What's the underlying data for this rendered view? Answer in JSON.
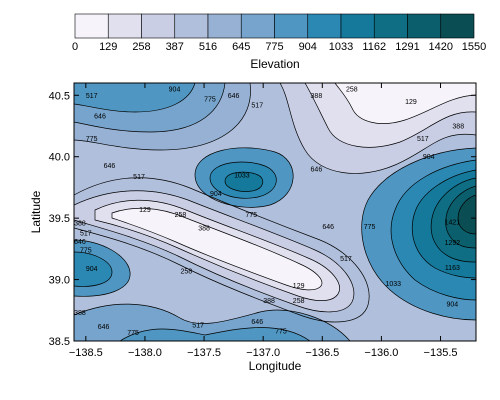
{
  "chart_data": {
    "type": "contour-filled",
    "xlabel": "Longitude",
    "ylabel": "Latitude",
    "xlim": [
      -138.6,
      -135.2
    ],
    "ylim": [
      38.5,
      40.6
    ],
    "x_ticks": [
      -138.5,
      -138.0,
      -137.5,
      -137.0,
      -136.5,
      -136.0,
      -135.5
    ],
    "x_tick_labels": [
      "−138.5",
      "−138.0",
      "−137.5",
      "−137.0",
      "−136.5",
      "−136.0",
      "−135.5"
    ],
    "y_ticks": [
      38.5,
      39.0,
      39.5,
      40.0,
      40.5
    ],
    "y_tick_labels": [
      "38.5",
      "39.0",
      "39.5",
      "40.0",
      "40.5"
    ],
    "colorbar": {
      "label": "Elevation",
      "levels": [
        0,
        129,
        258,
        387,
        516,
        645,
        775,
        904,
        1033,
        1162,
        1291,
        1420,
        1550
      ],
      "colors": [
        "#f6f3fa",
        "#e1e0ef",
        "#c9cee4",
        "#b0bfdb",
        "#96b1d4",
        "#76a4cc",
        "#4f96c2",
        "#2a88b3",
        "#14799a",
        "#0f6e83",
        "#0b5f6c",
        "#0a4d53"
      ]
    },
    "contour_labels": [
      {
        "text": "517",
        "lon": -138.45,
        "lat": 40.5
      },
      {
        "text": "646",
        "lon": -138.38,
        "lat": 40.33
      },
      {
        "text": "775",
        "lon": -138.45,
        "lat": 40.15
      },
      {
        "text": "904",
        "lon": -137.75,
        "lat": 40.55
      },
      {
        "text": "775",
        "lon": -137.45,
        "lat": 40.47
      },
      {
        "text": "646",
        "lon": -137.25,
        "lat": 40.5
      },
      {
        "text": "517",
        "lon": -137.05,
        "lat": 40.42
      },
      {
        "text": "388",
        "lon": -136.55,
        "lat": 40.5
      },
      {
        "text": "258",
        "lon": -136.25,
        "lat": 40.55
      },
      {
        "text": "129",
        "lon": -135.75,
        "lat": 40.45
      },
      {
        "text": "388",
        "lon": -135.35,
        "lat": 40.25
      },
      {
        "text": "517",
        "lon": -135.65,
        "lat": 40.15
      },
      {
        "text": "904",
        "lon": -135.6,
        "lat": 40.0
      },
      {
        "text": "646",
        "lon": -138.3,
        "lat": 39.93
      },
      {
        "text": "517",
        "lon": -138.05,
        "lat": 39.84
      },
      {
        "text": "1033",
        "lon": -137.18,
        "lat": 39.85
      },
      {
        "text": "904",
        "lon": -137.4,
        "lat": 39.7
      },
      {
        "text": "646",
        "lon": -136.55,
        "lat": 39.9
      },
      {
        "text": "129",
        "lon": -138.0,
        "lat": 39.57
      },
      {
        "text": "258",
        "lon": -137.7,
        "lat": 39.53
      },
      {
        "text": "775",
        "lon": -137.1,
        "lat": 39.53
      },
      {
        "text": "388",
        "lon": -137.5,
        "lat": 39.42
      },
      {
        "text": "646",
        "lon": -136.45,
        "lat": 39.43
      },
      {
        "text": "775",
        "lon": -136.1,
        "lat": 39.43
      },
      {
        "text": "388",
        "lon": -138.55,
        "lat": 39.46
      },
      {
        "text": "517",
        "lon": -138.5,
        "lat": 39.38
      },
      {
        "text": "646",
        "lon": -138.55,
        "lat": 39.31
      },
      {
        "text": "775",
        "lon": -138.5,
        "lat": 39.24
      },
      {
        "text": "904",
        "lon": -138.45,
        "lat": 39.09
      },
      {
        "text": "258",
        "lon": -137.65,
        "lat": 39.07
      },
      {
        "text": "517",
        "lon": -136.3,
        "lat": 39.17
      },
      {
        "text": "129",
        "lon": -136.7,
        "lat": 38.95
      },
      {
        "text": "258",
        "lon": -136.7,
        "lat": 38.83
      },
      {
        "text": "388",
        "lon": -136.95,
        "lat": 38.83
      },
      {
        "text": "646",
        "lon": -137.05,
        "lat": 38.66
      },
      {
        "text": "775",
        "lon": -136.85,
        "lat": 38.58
      },
      {
        "text": "517",
        "lon": -137.55,
        "lat": 38.63
      },
      {
        "text": "775",
        "lon": -138.1,
        "lat": 38.57
      },
      {
        "text": "388",
        "lon": -138.55,
        "lat": 38.73
      },
      {
        "text": "646",
        "lon": -138.35,
        "lat": 38.62
      },
      {
        "text": "1421",
        "lon": -135.4,
        "lat": 39.47
      },
      {
        "text": "1292",
        "lon": -135.4,
        "lat": 39.3
      },
      {
        "text": "1163",
        "lon": -135.4,
        "lat": 39.1
      },
      {
        "text": "1033",
        "lon": -135.9,
        "lat": 38.97
      },
      {
        "text": "904",
        "lon": -135.4,
        "lat": 38.8
      }
    ]
  }
}
